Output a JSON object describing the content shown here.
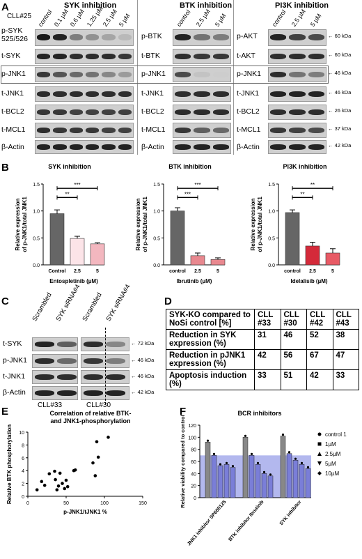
{
  "panel_labels": [
    "A",
    "B",
    "C",
    "D",
    "E",
    "F"
  ],
  "panel_a": {
    "cll": "CLL#25",
    "groups": [
      {
        "title": "SYK inhibition",
        "lanes": [
          "control",
          "0.1 µM",
          "0.6 µM",
          "1.25 µM",
          "2.5 µM",
          "5 µM"
        ],
        "rows": [
          {
            "label": "p-SYK\n525/526",
            "bands": [
              0.95,
              0.9,
              0.45,
              0.35,
              0.25,
              0.15
            ]
          },
          {
            "label": "t-SYK",
            "bands": [
              0.9,
              0.9,
              0.85,
              0.85,
              0.85,
              0.8
            ]
          },
          {
            "label": "p-JNK1",
            "bands": [
              0.8,
              0.65,
              0.55,
              0.5,
              0.4,
              0.3
            ]
          },
          {
            "label": "t-JNK1",
            "bands": [
              0.85,
              0.85,
              0.85,
              0.85,
              0.85,
              0.85
            ]
          },
          {
            "label": "t-BCL2",
            "bands": [
              0.8,
              0.8,
              0.75,
              0.75,
              0.75,
              0.75
            ]
          },
          {
            "label": "t-MCL1",
            "bands": [
              0.85,
              0.8,
              0.8,
              0.8,
              0.75,
              0.75
            ]
          },
          {
            "label": "β-Actin",
            "bands": [
              0.9,
              0.9,
              0.9,
              0.9,
              0.9,
              0.9
            ]
          }
        ]
      },
      {
        "title": "BTK inhibition",
        "lanes": [
          "control",
          "2.5 µM",
          "5 µM"
        ],
        "rows": [
          {
            "label": "p-BTK",
            "bands": [
              0.9,
              0.5,
              0.45
            ]
          },
          {
            "label": "t-BTK",
            "bands": [
              0.85,
              0.8,
              0.8
            ]
          },
          {
            "label": "p-JNK1",
            "bands": [
              0.7,
              0.1,
              0.05
            ]
          },
          {
            "label": "t-JNK1",
            "bands": [
              0.85,
              0.85,
              0.85
            ]
          },
          {
            "label": "t-BCL2",
            "bands": [
              0.85,
              0.85,
              0.85
            ]
          },
          {
            "label": "t-MCL1",
            "bands": [
              0.8,
              0.6,
              0.55
            ]
          },
          {
            "label": "β-Actin",
            "bands": [
              0.9,
              0.9,
              0.9
            ]
          }
        ]
      },
      {
        "title": "PI3K inhibition",
        "lanes": [
          "control",
          "2.5 µM",
          "5 µM"
        ],
        "rows": [
          {
            "label": "p-AKT",
            "bands": [
              0.9,
              0.75,
              0.7
            ],
            "kda": "60 kDa"
          },
          {
            "label": "t-AKT",
            "bands": [
              0.85,
              0.85,
              0.85
            ],
            "kda": "60 kDa"
          },
          {
            "label": "p-JNK1",
            "bands": [
              0.85,
              0.5,
              0.45
            ],
            "kda": "46 kDa"
          },
          {
            "label": "t-JNK1",
            "bands": [
              0.9,
              0.9,
              0.9
            ],
            "kda": "46 kDa"
          },
          {
            "label": "t-BCL2",
            "bands": [
              0.85,
              0.85,
              0.85
            ],
            "kda": "26 kDa"
          },
          {
            "label": "t-MCL1",
            "bands": [
              0.8,
              0.75,
              0.7
            ],
            "kda": "37 kDa"
          },
          {
            "label": "β-Actin",
            "bands": [
              0.9,
              0.9,
              0.9
            ],
            "kda": "42 kDa"
          }
        ]
      }
    ]
  },
  "panel_c": {
    "lanes": [
      "Scrambled",
      "SYK siRNA#4",
      "Scrambled",
      "SYK siRNA#4"
    ],
    "rows": [
      {
        "label": "t-SYK",
        "kda": "72 kDa",
        "bands": [
          0.9,
          0.6,
          0.85,
          0.4
        ]
      },
      {
        "label": "p-JNK1",
        "kda": "46 kDa",
        "bands": [
          0.85,
          0.55,
          0.8,
          0.45
        ]
      },
      {
        "label": "t-JNK1",
        "kda": "46 kDa",
        "bands": [
          0.85,
          0.85,
          0.85,
          0.85
        ]
      },
      {
        "label": "β-Actin",
        "kda": "42 kDa",
        "bands": [
          0.9,
          0.9,
          0.9,
          0.9
        ]
      }
    ],
    "cll_labels": [
      "CLL#33",
      "CLL#30"
    ]
  },
  "panel_d": {
    "header": [
      "SYK-KO compared to NoSi control [%]",
      "CLL #33",
      "CLL #30",
      "CLL #42",
      "CLL #43"
    ],
    "rows": [
      [
        "Reduction in SYK expression (%)",
        "31",
        "46",
        "52",
        "38"
      ],
      [
        "Reduction in pJNK1 expression (%)",
        "42",
        "56",
        "67",
        "47"
      ],
      [
        "Apoptosis induction (%)",
        "33",
        "51",
        "42",
        "33"
      ]
    ]
  },
  "chart_data": [
    {
      "type": "bar",
      "title": "SYK inhibition",
      "xlabel": "Entospletinib (µM)",
      "ylabel": "Relative expression of p-JNK1/total JNK1",
      "categories": [
        "Control",
        "2.5",
        "5"
      ],
      "values": [
        0.95,
        0.49,
        0.39
      ],
      "errors": [
        0.07,
        0.04,
        0.02
      ],
      "ylim": [
        0,
        1.5
      ],
      "yticks": [
        "0.0",
        "0.5",
        "1.0",
        "1.5"
      ],
      "colors": [
        "#666666",
        "#fce4e8",
        "#f3b7bf"
      ],
      "sig": [
        {
          "from": 0,
          "to": 1,
          "label": "**"
        },
        {
          "from": 0,
          "to": 2,
          "label": "***"
        }
      ]
    },
    {
      "type": "bar",
      "title": "BTK inhibition",
      "xlabel": "Ibrutinib (µM)",
      "ylabel": "Relative expression of p-JNK1/total JNK1",
      "categories": [
        "control",
        "2.5",
        "5"
      ],
      "values": [
        1.0,
        0.17,
        0.1
      ],
      "errors": [
        0.06,
        0.05,
        0.03
      ],
      "ylim": [
        0,
        1.5
      ],
      "yticks": [
        "0.0",
        "0.5",
        "1.0",
        "1.5"
      ],
      "colors": [
        "#666666",
        "#e8888f",
        "#e8888f"
      ],
      "sig": [
        {
          "from": 0,
          "to": 1,
          "label": "***"
        },
        {
          "from": 0,
          "to": 2,
          "label": "***"
        }
      ]
    },
    {
      "type": "bar",
      "title": "PI3K inhibition",
      "xlabel": "Idelalisib (µM)",
      "ylabel": "Relative expression of p-JNK1/total JNK1",
      "categories": [
        "control",
        "2.5",
        "5"
      ],
      "values": [
        0.97,
        0.35,
        0.22
      ],
      "errors": [
        0.05,
        0.07,
        0.08
      ],
      "ylim": [
        0,
        1.5
      ],
      "yticks": [
        "0.0",
        "0.5",
        "1.0",
        "1.5"
      ],
      "colors": [
        "#666666",
        "#d42a3a",
        "#e85a65"
      ],
      "sig": [
        {
          "from": 0,
          "to": 1,
          "label": "**"
        },
        {
          "from": 0,
          "to": 2,
          "label": "**"
        }
      ]
    },
    {
      "type": "scatter",
      "title": "Correlation of relative BTK- and JNK1-phosphorylation",
      "xlabel": "p-JNK1/tJNK1 %",
      "ylabel": "Relative BTK phosphorylation",
      "xlim": [
        0,
        150
      ],
      "ylim": [
        0,
        10
      ],
      "xticks": [
        "0",
        "50",
        "100",
        "150"
      ],
      "yticks": [
        "0",
        "2",
        "4",
        "6",
        "8",
        "10"
      ],
      "x": [
        12,
        18,
        22,
        28,
        35,
        36,
        38,
        40,
        42,
        45,
        48,
        50,
        52,
        60,
        62,
        85,
        88,
        90,
        92,
        105
      ],
      "y": [
        1.0,
        2.3,
        1.7,
        3.5,
        3.9,
        2.6,
        1.0,
        1.6,
        3.6,
        2.0,
        1.2,
        2.5,
        1.5,
        4.0,
        4.1,
        5.2,
        3.2,
        8.5,
        6.1,
        9.2
      ]
    },
    {
      "type": "bar",
      "title": "BCR inhibitors",
      "ylabel": "Relative viability compared to control",
      "ylim": [
        0,
        120
      ],
      "yticks": [
        "0",
        "20",
        "40",
        "60",
        "80",
        "100",
        "120"
      ],
      "categories": [
        "JNK1 inhibitor SP600125",
        "BTK inhibitor Ibrutinib",
        "SYK inhibitor"
      ],
      "series": [
        {
          "name": "control 1",
          "values": [
            92,
            100,
            102
          ]
        },
        {
          "name": "1µM",
          "values": [
            70,
            70,
            73
          ]
        },
        {
          "name": "2.5µM",
          "values": [
            53,
            55,
            62
          ]
        },
        {
          "name": "5µM",
          "values": [
            55,
            40,
            55
          ]
        },
        {
          "name": "10µM",
          "values": [
            50,
            36,
            48
          ]
        }
      ],
      "highlight_y": 70,
      "colors": {
        "highlight": "#9aa0e8",
        "bars": "#7a7ed8",
        "control": "#888888"
      }
    }
  ]
}
